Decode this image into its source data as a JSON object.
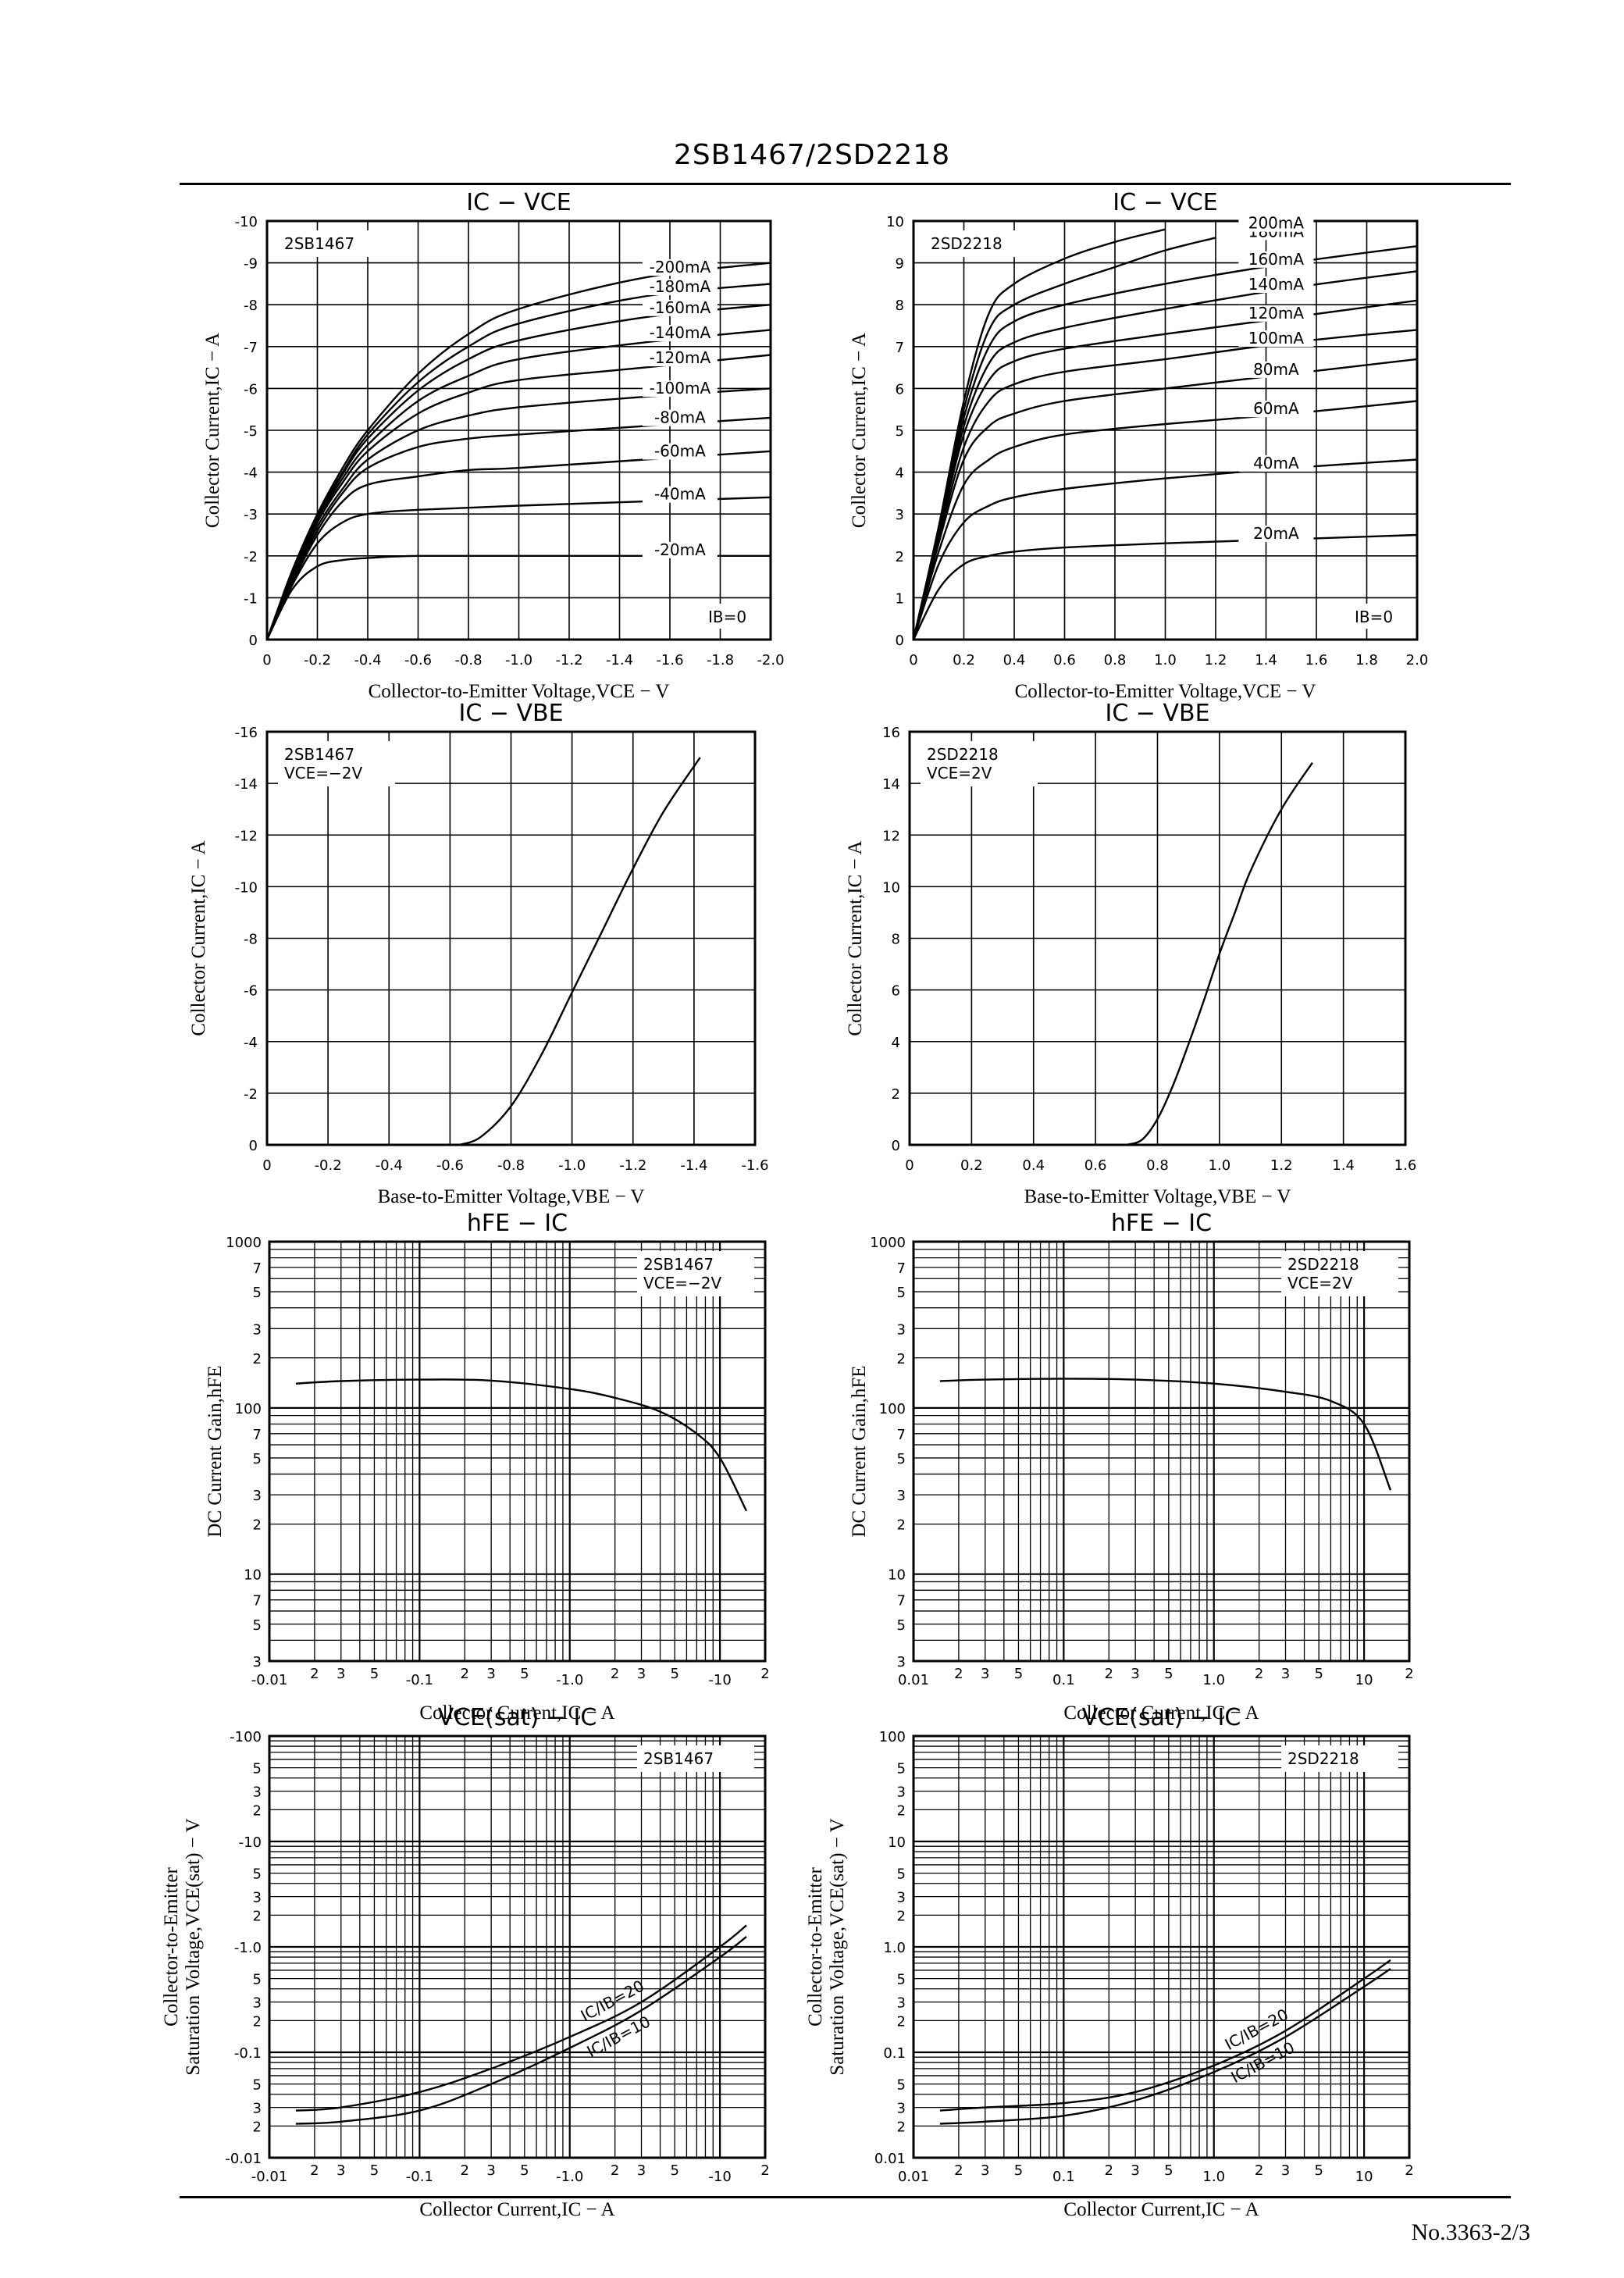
{
  "header": {
    "title": "2SB1467/2SD2218"
  },
  "footer": {
    "page": "No.3363-2/3"
  },
  "charts": [
    {
      "title": "IC − VCE",
      "device": "2SB1467",
      "note": "IB=0",
      "xlabel": "Collector-to-Emitter Voltage,VCE − V",
      "ylabel": "Collector Current,IC − A",
      "xticks": [
        "0",
        "-0.2",
        "-0.4",
        "-0.6",
        "-0.8",
        "-1.0",
        "-1.2",
        "-1.4",
        "-1.6",
        "-1.8",
        "-2.0"
      ],
      "yticks": [
        "0",
        "-1",
        "-2",
        "-3",
        "-4",
        "-5",
        "-6",
        "-7",
        "-8",
        "-9",
        "-10"
      ],
      "curve_labels": [
        "-200mA",
        "-180mA",
        "-160mA",
        "-140mA",
        "-120mA",
        "-100mA",
        "-80mA",
        "-60mA",
        "-40mA",
        "-20mA"
      ]
    },
    {
      "title": "IC − VCE",
      "device": "2SD2218",
      "note": "IB=0",
      "xlabel": "Collector-to-Emitter Voltage,VCE − V",
      "ylabel": "Collector Current,IC − A",
      "xticks": [
        "0",
        "0.2",
        "0.4",
        "0.6",
        "0.8",
        "1.0",
        "1.2",
        "1.4",
        "1.6",
        "1.8",
        "2.0"
      ],
      "yticks": [
        "0",
        "1",
        "2",
        "3",
        "4",
        "5",
        "6",
        "7",
        "8",
        "9",
        "10"
      ],
      "curve_labels": [
        "200mA",
        "180mA",
        "160mA",
        "140mA",
        "120mA",
        "100mA",
        "80mA",
        "60mA",
        "40mA",
        "20mA"
      ]
    },
    {
      "title": "IC − VBE",
      "device": "2SB1467",
      "condition": "VCE=−2V",
      "xlabel": "Base-to-Emitter Voltage,VBE − V",
      "ylabel": "Collector Current,IC − A",
      "xticks": [
        "0",
        "-0.2",
        "-0.4",
        "-0.6",
        "-0.8",
        "-1.0",
        "-1.2",
        "-1.4",
        "-1.6"
      ],
      "yticks": [
        "0",
        "-2",
        "-4",
        "-6",
        "-8",
        "-10",
        "-12",
        "-14",
        "-16"
      ]
    },
    {
      "title": "IC − VBE",
      "device": "2SD2218",
      "condition": "VCE=2V",
      "xlabel": "Base-to-Emitter Voltage,VBE − V",
      "ylabel": "Collector Current,IC − A",
      "xticks": [
        "0",
        "0.2",
        "0.4",
        "0.6",
        "0.8",
        "1.0",
        "1.2",
        "1.4",
        "1.6"
      ],
      "yticks": [
        "0",
        "2",
        "4",
        "6",
        "8",
        "10",
        "12",
        "14",
        "16"
      ]
    },
    {
      "title": "hFE − IC",
      "device": "2SB1467",
      "condition": "VCE=−2V",
      "xlabel": "Collector Current,IC − A",
      "ylabel": "DC Current Gain,hFE",
      "xticks": [
        "-0.01",
        "-0.1",
        "-1.0",
        "-10"
      ],
      "yticks": [
        "1000",
        "100",
        "10"
      ]
    },
    {
      "title": "hFE − IC",
      "device": "2SD2218",
      "condition": "VCE=2V",
      "xlabel": "Collector Current,IC − A",
      "ylabel": "DC Current Gain,hFE",
      "xticks": [
        "0.01",
        "0.1",
        "1.0",
        "10"
      ],
      "yticks": [
        "1000",
        "100",
        "10"
      ]
    },
    {
      "title": "VCE(sat) − IC",
      "device": "2SB1467",
      "xlabel": "Collector Current,IC − A",
      "ylabel1": "Collector-to-Emitter",
      "ylabel2": "Saturation Voltage,VCE(sat) − V",
      "xticks": [
        "-0.01",
        "-0.1",
        "-1.0",
        "-10"
      ],
      "yticks": [
        "-100",
        "-10",
        "-1.0",
        "-0.1",
        "-0.01"
      ],
      "curve_labels": [
        "IC/IB=20",
        "IC/IB=10"
      ]
    },
    {
      "title": "VCE(sat) − IC",
      "device": "2SD2218",
      "xlabel": "Collector Current,IC − A",
      "ylabel1": "Collector-to-Emitter",
      "ylabel2": "Saturation Voltage,VCE(sat) − V",
      "xticks": [
        "0.01",
        "0.1",
        "1.0",
        "10"
      ],
      "yticks": [
        "100",
        "10",
        "1.0",
        "0.1",
        "0.01"
      ],
      "curve_labels": [
        "IC/IB=20",
        "IC/IB=10"
      ]
    }
  ],
  "chart_data": [
    {
      "type": "line",
      "title": "IC − VCE",
      "device": "2SB1467",
      "xlim": [
        0,
        -2.0
      ],
      "ylim": [
        0,
        -10
      ],
      "grid": true,
      "series": [
        {
          "name": "-20mA",
          "x": [
            0,
            -0.1,
            -0.2,
            -0.3,
            -0.4,
            -0.6,
            -1.0,
            -1.5,
            -2.0
          ],
          "y": [
            0,
            -1.2,
            -1.75,
            -1.9,
            -1.95,
            -2.0,
            -2.0,
            -2.0,
            -2.0
          ]
        },
        {
          "name": "-40mA",
          "x": [
            0,
            -0.1,
            -0.2,
            -0.3,
            -0.4,
            -0.6,
            -1.0,
            -1.5,
            -2.0
          ],
          "y": [
            0,
            -1.3,
            -2.3,
            -2.8,
            -3.0,
            -3.1,
            -3.2,
            -3.3,
            -3.4
          ]
        },
        {
          "name": "-60mA",
          "x": [
            0,
            -0.1,
            -0.2,
            -0.3,
            -0.4,
            -0.6,
            -0.8,
            -1.0,
            -1.5,
            -2.0
          ],
          "y": [
            0,
            -1.35,
            -2.5,
            -3.3,
            -3.7,
            -3.9,
            -4.05,
            -4.1,
            -4.3,
            -4.5
          ]
        },
        {
          "name": "-80mA",
          "x": [
            0,
            -0.1,
            -0.2,
            -0.3,
            -0.4,
            -0.6,
            -0.8,
            -1.0,
            -1.5,
            -2.0
          ],
          "y": [
            0,
            -1.4,
            -2.6,
            -3.5,
            -4.1,
            -4.6,
            -4.8,
            -4.9,
            -5.1,
            -5.3
          ]
        },
        {
          "name": "-100mA",
          "x": [
            0,
            -0.1,
            -0.2,
            -0.3,
            -0.4,
            -0.6,
            -0.8,
            -1.0,
            -1.5,
            -2.0
          ],
          "y": [
            0,
            -1.45,
            -2.7,
            -3.6,
            -4.3,
            -5.0,
            -5.35,
            -5.55,
            -5.8,
            -6.0
          ]
        },
        {
          "name": "-120mA",
          "x": [
            0,
            -0.1,
            -0.2,
            -0.3,
            -0.4,
            -0.6,
            -0.8,
            -1.0,
            -1.5,
            -2.0
          ],
          "y": [
            0,
            -1.5,
            -2.8,
            -3.75,
            -4.5,
            -5.4,
            -5.9,
            -6.2,
            -6.5,
            -6.8
          ]
        },
        {
          "name": "-140mA",
          "x": [
            0,
            -0.1,
            -0.2,
            -0.3,
            -0.4,
            -0.6,
            -0.8,
            -1.0,
            -1.5,
            -2.0
          ],
          "y": [
            0,
            -1.55,
            -2.85,
            -3.85,
            -4.65,
            -5.7,
            -6.3,
            -6.7,
            -7.1,
            -7.4
          ]
        },
        {
          "name": "-160mA",
          "x": [
            0,
            -0.1,
            -0.2,
            -0.3,
            -0.4,
            -0.6,
            -0.8,
            -1.0,
            -1.5,
            -2.0
          ],
          "y": [
            0,
            -1.6,
            -2.9,
            -3.95,
            -4.8,
            -5.95,
            -6.7,
            -7.15,
            -7.7,
            -8.0
          ]
        },
        {
          "name": "-180mA",
          "x": [
            0,
            -0.1,
            -0.2,
            -0.3,
            -0.4,
            -0.6,
            -0.8,
            -1.0,
            -1.5,
            -2.0
          ],
          "y": [
            0,
            -1.6,
            -2.95,
            -4.0,
            -4.9,
            -6.15,
            -7.0,
            -7.55,
            -8.2,
            -8.5
          ]
        },
        {
          "name": "-200mA",
          "x": [
            0,
            -0.1,
            -0.2,
            -0.3,
            -0.4,
            -0.6,
            -0.8,
            -1.0,
            -1.5,
            -2.0
          ],
          "y": [
            0,
            -1.65,
            -3.0,
            -4.1,
            -5.0,
            -6.35,
            -7.3,
            -7.9,
            -8.65,
            -9.0
          ]
        }
      ]
    },
    {
      "type": "line",
      "title": "IC − VCE",
      "device": "2SD2218",
      "xlim": [
        0,
        2.0
      ],
      "ylim": [
        0,
        10
      ],
      "grid": true,
      "series": [
        {
          "name": "20mA",
          "x": [
            0,
            0.1,
            0.2,
            0.3,
            0.4,
            0.6,
            1.0,
            1.5,
            2.0
          ],
          "y": [
            0,
            1.2,
            1.8,
            2.0,
            2.1,
            2.2,
            2.3,
            2.4,
            2.5
          ]
        },
        {
          "name": "40mA",
          "x": [
            0,
            0.1,
            0.2,
            0.3,
            0.4,
            0.6,
            1.0,
            1.5,
            2.0
          ],
          "y": [
            0,
            1.8,
            2.8,
            3.2,
            3.4,
            3.6,
            3.85,
            4.1,
            4.3
          ]
        },
        {
          "name": "60mA",
          "x": [
            0,
            0.1,
            0.2,
            0.3,
            0.4,
            0.6,
            1.0,
            1.5,
            2.0
          ],
          "y": [
            0,
            2.1,
            3.7,
            4.3,
            4.6,
            4.9,
            5.15,
            5.4,
            5.7
          ]
        },
        {
          "name": "80mA",
          "x": [
            0,
            0.1,
            0.2,
            0.3,
            0.4,
            0.6,
            1.0,
            1.5,
            2.0
          ],
          "y": [
            0,
            2.3,
            4.3,
            5.1,
            5.4,
            5.7,
            6.0,
            6.35,
            6.7
          ]
        },
        {
          "name": "100mA",
          "x": [
            0,
            0.1,
            0.2,
            0.3,
            0.4,
            0.6,
            1.0,
            1.5,
            2.0
          ],
          "y": [
            0,
            2.4,
            4.6,
            5.7,
            6.1,
            6.4,
            6.7,
            7.1,
            7.4
          ]
        },
        {
          "name": "120mA",
          "x": [
            0,
            0.1,
            0.2,
            0.3,
            0.4,
            0.6,
            1.0,
            1.5,
            2.0
          ],
          "y": [
            0,
            2.5,
            4.9,
            6.2,
            6.65,
            6.95,
            7.3,
            7.7,
            8.1
          ]
        },
        {
          "name": "140mA",
          "x": [
            0,
            0.1,
            0.2,
            0.3,
            0.4,
            0.6,
            1.0,
            1.5,
            2.0
          ],
          "y": [
            0,
            2.55,
            5.1,
            6.6,
            7.1,
            7.45,
            7.9,
            8.4,
            8.8
          ]
        },
        {
          "name": "160mA",
          "x": [
            0,
            0.1,
            0.2,
            0.3,
            0.4,
            0.6,
            1.0,
            1.5,
            2.0
          ],
          "y": [
            0,
            2.6,
            5.3,
            7.0,
            7.6,
            8.0,
            8.5,
            9.0,
            9.4
          ]
        },
        {
          "name": "180mA",
          "x": [
            0,
            0.1,
            0.2,
            0.3,
            0.4,
            0.6,
            0.8,
            1.0,
            1.2
          ],
          "y": [
            0,
            2.65,
            5.5,
            7.4,
            8.0,
            8.5,
            8.9,
            9.3,
            9.6
          ]
        },
        {
          "name": "200mA",
          "x": [
            0,
            0.1,
            0.2,
            0.3,
            0.4,
            0.6,
            0.8,
            1.0
          ],
          "y": [
            0,
            2.7,
            5.7,
            7.8,
            8.5,
            9.1,
            9.5,
            9.8
          ]
        }
      ]
    },
    {
      "type": "line",
      "title": "IC − VBE",
      "device": "2SB1467",
      "xlim": [
        0,
        -1.6
      ],
      "ylim": [
        0,
        -16
      ],
      "grid": true,
      "series": [
        {
          "x": [
            -0.63,
            -0.7,
            -0.8,
            -0.9,
            -1.0,
            -1.1,
            -1.2,
            -1.3,
            -1.42
          ],
          "y": [
            0,
            -0.3,
            -1.5,
            -3.5,
            -5.9,
            -8.3,
            -10.7,
            -12.9,
            -15.0
          ]
        }
      ]
    },
    {
      "type": "line",
      "title": "IC − VBE",
      "device": "2SD2218",
      "xlim": [
        0,
        1.6
      ],
      "ylim": [
        0,
        16
      ],
      "grid": true,
      "series": [
        {
          "x": [
            0.7,
            0.75,
            0.8,
            0.85,
            0.9,
            0.95,
            1.0,
            1.05,
            1.1,
            1.2,
            1.3
          ],
          "y": [
            0,
            0.2,
            1.0,
            2.3,
            3.9,
            5.6,
            7.4,
            9.0,
            10.6,
            13.0,
            14.8
          ]
        }
      ]
    },
    {
      "type": "line",
      "title": "hFE − IC",
      "device": "2SB1467",
      "xscale": "log",
      "yscale": "log",
      "xlim": [
        0.01,
        20
      ],
      "ylim": [
        3,
        1000
      ],
      "grid": true,
      "series": [
        {
          "x": [
            0.015,
            0.03,
            0.1,
            0.3,
            1.0,
            2.0,
            4.0,
            7.0,
            10.0,
            15.0
          ],
          "y": [
            140,
            145,
            148,
            146,
            130,
            115,
            95,
            70,
            50,
            24
          ]
        }
      ]
    },
    {
      "type": "line",
      "title": "hFE − IC",
      "device": "2SD2218",
      "xscale": "log",
      "yscale": "log",
      "xlim": [
        0.01,
        20
      ],
      "ylim": [
        3,
        1000
      ],
      "grid": true,
      "series": [
        {
          "x": [
            0.015,
            0.03,
            0.1,
            0.3,
            1.0,
            3.0,
            6.0,
            10.0,
            15.0
          ],
          "y": [
            145,
            148,
            150,
            148,
            140,
            125,
            110,
            80,
            32
          ]
        }
      ]
    },
    {
      "type": "line",
      "title": "VCE(sat) − IC",
      "device": "2SB1467",
      "xscale": "log",
      "yscale": "log",
      "xlim": [
        0.01,
        20
      ],
      "ylim": [
        0.01,
        100
      ],
      "grid": true,
      "series": [
        {
          "name": "IC/IB=20",
          "x": [
            0.015,
            0.03,
            0.1,
            0.3,
            1.0,
            3.0,
            10.0,
            15.0
          ],
          "y": [
            0.028,
            0.03,
            0.042,
            0.07,
            0.14,
            0.3,
            1.0,
            1.6
          ]
        },
        {
          "name": "IC/IB=10",
          "x": [
            0.015,
            0.03,
            0.1,
            0.3,
            1.0,
            3.0,
            10.0,
            15.0
          ],
          "y": [
            0.021,
            0.022,
            0.028,
            0.05,
            0.11,
            0.25,
            0.8,
            1.25
          ]
        }
      ]
    },
    {
      "type": "line",
      "title": "VCE(sat) − IC",
      "device": "2SD2218",
      "xscale": "log",
      "yscale": "log",
      "xlim": [
        0.01,
        20
      ],
      "ylim": [
        0.01,
        100
      ],
      "grid": true,
      "series": [
        {
          "name": "IC/IB=20",
          "x": [
            0.015,
            0.03,
            0.1,
            0.3,
            1.0,
            3.0,
            10.0,
            15.0
          ],
          "y": [
            0.028,
            0.03,
            0.033,
            0.042,
            0.075,
            0.16,
            0.5,
            0.75
          ]
        },
        {
          "name": "IC/IB=10",
          "x": [
            0.015,
            0.03,
            0.1,
            0.3,
            1.0,
            3.0,
            10.0,
            15.0
          ],
          "y": [
            0.021,
            0.022,
            0.025,
            0.035,
            0.065,
            0.14,
            0.42,
            0.62
          ]
        }
      ]
    }
  ]
}
